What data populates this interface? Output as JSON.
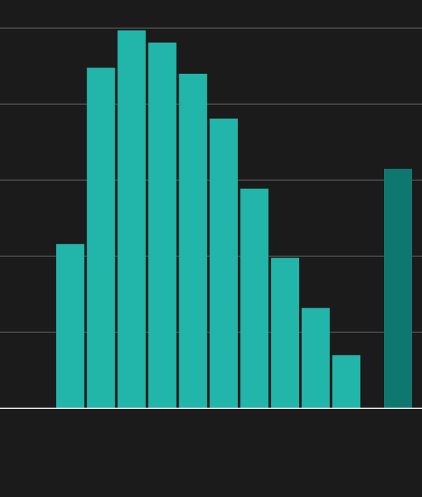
{
  "chart_data": {
    "type": "bar",
    "categories": [
      null,
      null,
      null,
      null,
      null,
      null,
      null,
      null,
      null,
      null,
      null
    ],
    "values": [
      2.16,
      4.48,
      4.97,
      4.81,
      4.4,
      3.81,
      2.89,
      1.98,
      1.32,
      0.7,
      3.15
    ],
    "colors": [
      "#22b5a9",
      "#22b5a9",
      "#22b5a9",
      "#22b5a9",
      "#22b5a9",
      "#22b5a9",
      "#22b5a9",
      "#22b5a9",
      "#22b5a9",
      "#22b5a9",
      "#0e7870"
    ],
    "ylim": [
      0,
      5
    ],
    "yticks": [
      0,
      1,
      2,
      3,
      4,
      5
    ],
    "grid": true
  }
}
